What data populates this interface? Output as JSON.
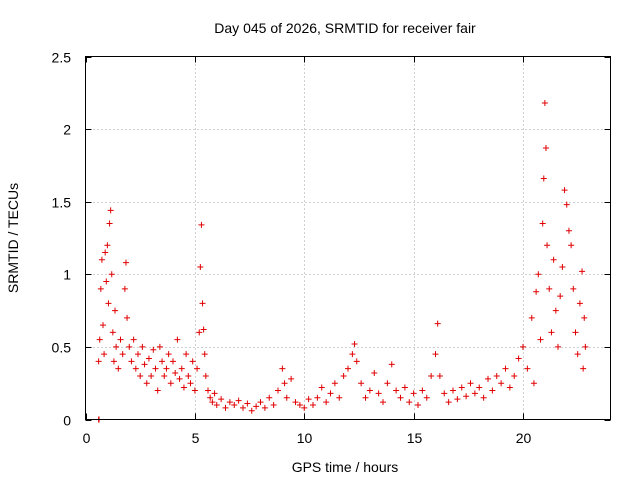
{
  "chart_data": {
    "type": "scatter",
    "title": "Day 045 of 2026, SRMTID for receiver fair",
    "xlabel": "GPS time / hours",
    "ylabel": "SRMTID / TECUs",
    "xlim": [
      0,
      24
    ],
    "ylim": [
      0,
      2.5
    ],
    "xticks": [
      0,
      5,
      10,
      15,
      20
    ],
    "xtick_labels": [
      "0",
      "5",
      "10",
      "15",
      "20"
    ],
    "yticks": [
      0,
      0.5,
      1,
      1.5,
      2,
      2.5
    ],
    "ytick_labels": [
      "0",
      "0.5",
      "1",
      "1.5",
      "2",
      "2.5"
    ],
    "grid": true,
    "marker": "+",
    "color": "#e00000",
    "series": [
      {
        "name": "SRMTID",
        "points": [
          [
            0.6,
            0.0
          ],
          [
            0.62,
            0.0
          ],
          [
            0.6,
            0.4
          ],
          [
            0.65,
            0.55
          ],
          [
            0.7,
            0.9
          ],
          [
            0.75,
            1.1
          ],
          [
            0.8,
            0.65
          ],
          [
            0.85,
            0.45
          ],
          [
            0.9,
            1.15
          ],
          [
            0.95,
            0.95
          ],
          [
            1.0,
            1.2
          ],
          [
            1.05,
            0.8
          ],
          [
            1.1,
            1.35
          ],
          [
            1.15,
            1.44
          ],
          [
            1.2,
            1.0
          ],
          [
            1.25,
            0.6
          ],
          [
            1.3,
            0.4
          ],
          [
            1.35,
            0.75
          ],
          [
            1.4,
            0.5
          ],
          [
            1.5,
            0.35
          ],
          [
            1.6,
            0.55
          ],
          [
            1.7,
            0.45
          ],
          [
            1.8,
            0.9
          ],
          [
            1.85,
            1.08
          ],
          [
            1.9,
            0.7
          ],
          [
            2.0,
            0.5
          ],
          [
            2.1,
            0.4
          ],
          [
            2.2,
            0.55
          ],
          [
            2.3,
            0.35
          ],
          [
            2.4,
            0.45
          ],
          [
            2.5,
            0.3
          ],
          [
            2.6,
            0.5
          ],
          [
            2.7,
            0.38
          ],
          [
            2.8,
            0.25
          ],
          [
            2.9,
            0.42
          ],
          [
            3.0,
            0.3
          ],
          [
            3.1,
            0.48
          ],
          [
            3.2,
            0.35
          ],
          [
            3.3,
            0.2
          ],
          [
            3.4,
            0.5
          ],
          [
            3.5,
            0.4
          ],
          [
            3.6,
            0.3
          ],
          [
            3.7,
            0.35
          ],
          [
            3.8,
            0.45
          ],
          [
            3.9,
            0.25
          ],
          [
            4.0,
            0.4
          ],
          [
            4.1,
            0.32
          ],
          [
            4.2,
            0.55
          ],
          [
            4.3,
            0.28
          ],
          [
            4.4,
            0.35
          ],
          [
            4.5,
            0.22
          ],
          [
            4.6,
            0.45
          ],
          [
            4.7,
            0.3
          ],
          [
            4.8,
            0.25
          ],
          [
            4.9,
            0.4
          ],
          [
            5.0,
            0.2
          ],
          [
            5.1,
            0.35
          ],
          [
            5.2,
            0.6
          ],
          [
            5.25,
            1.05
          ],
          [
            5.3,
            1.34
          ],
          [
            5.35,
            0.8
          ],
          [
            5.4,
            0.62
          ],
          [
            5.45,
            0.45
          ],
          [
            5.5,
            0.3
          ],
          [
            5.6,
            0.2
          ],
          [
            5.7,
            0.15
          ],
          [
            5.8,
            0.12
          ],
          [
            5.9,
            0.18
          ],
          [
            6.0,
            0.1
          ],
          [
            6.2,
            0.14
          ],
          [
            6.4,
            0.08
          ],
          [
            6.6,
            0.12
          ],
          [
            6.8,
            0.1
          ],
          [
            7.0,
            0.13
          ],
          [
            7.2,
            0.08
          ],
          [
            7.4,
            0.11
          ],
          [
            7.6,
            0.06
          ],
          [
            7.8,
            0.09
          ],
          [
            8.0,
            0.12
          ],
          [
            8.2,
            0.08
          ],
          [
            8.4,
            0.15
          ],
          [
            8.6,
            0.1
          ],
          [
            8.8,
            0.2
          ],
          [
            9.0,
            0.35
          ],
          [
            9.1,
            0.25
          ],
          [
            9.2,
            0.15
          ],
          [
            9.4,
            0.28
          ],
          [
            9.6,
            0.12
          ],
          [
            9.8,
            0.1
          ],
          [
            10.0,
            0.08
          ],
          [
            10.2,
            0.14
          ],
          [
            10.4,
            0.1
          ],
          [
            10.6,
            0.15
          ],
          [
            10.8,
            0.22
          ],
          [
            11.0,
            0.12
          ],
          [
            11.2,
            0.18
          ],
          [
            11.4,
            0.25
          ],
          [
            11.6,
            0.15
          ],
          [
            11.8,
            0.3
          ],
          [
            12.0,
            0.35
          ],
          [
            12.2,
            0.45
          ],
          [
            12.3,
            0.52
          ],
          [
            12.4,
            0.4
          ],
          [
            12.6,
            0.25
          ],
          [
            12.8,
            0.15
          ],
          [
            13.0,
            0.2
          ],
          [
            13.2,
            0.32
          ],
          [
            13.4,
            0.18
          ],
          [
            13.6,
            0.12
          ],
          [
            13.8,
            0.25
          ],
          [
            14.0,
            0.38
          ],
          [
            14.2,
            0.2
          ],
          [
            14.4,
            0.15
          ],
          [
            14.6,
            0.22
          ],
          [
            14.8,
            0.12
          ],
          [
            15.0,
            0.18
          ],
          [
            15.2,
            0.1
          ],
          [
            15.4,
            0.2
          ],
          [
            15.6,
            0.15
          ],
          [
            15.8,
            0.3
          ],
          [
            16.0,
            0.45
          ],
          [
            16.1,
            0.66
          ],
          [
            16.2,
            0.3
          ],
          [
            16.4,
            0.18
          ],
          [
            16.6,
            0.12
          ],
          [
            16.8,
            0.2
          ],
          [
            17.0,
            0.14
          ],
          [
            17.2,
            0.22
          ],
          [
            17.4,
            0.16
          ],
          [
            17.6,
            0.25
          ],
          [
            17.8,
            0.18
          ],
          [
            18.0,
            0.22
          ],
          [
            18.2,
            0.15
          ],
          [
            18.4,
            0.28
          ],
          [
            18.6,
            0.2
          ],
          [
            18.8,
            0.3
          ],
          [
            19.0,
            0.25
          ],
          [
            19.2,
            0.35
          ],
          [
            19.4,
            0.22
          ],
          [
            19.6,
            0.3
          ],
          [
            19.8,
            0.42
          ],
          [
            20.0,
            0.5
          ],
          [
            20.2,
            0.35
          ],
          [
            20.4,
            0.7
          ],
          [
            20.5,
            0.25
          ],
          [
            20.6,
            0.88
          ],
          [
            20.7,
            1.0
          ],
          [
            20.8,
            0.55
          ],
          [
            20.9,
            1.35
          ],
          [
            20.95,
            1.66
          ],
          [
            21.0,
            2.18
          ],
          [
            21.05,
            1.87
          ],
          [
            21.1,
            1.2
          ],
          [
            21.2,
            0.9
          ],
          [
            21.3,
            0.6
          ],
          [
            21.4,
            1.1
          ],
          [
            21.5,
            0.75
          ],
          [
            21.6,
            0.5
          ],
          [
            21.7,
            0.85
          ],
          [
            21.8,
            1.05
          ],
          [
            21.9,
            1.58
          ],
          [
            22.0,
            1.48
          ],
          [
            22.1,
            1.3
          ],
          [
            22.2,
            1.2
          ],
          [
            22.3,
            0.9
          ],
          [
            22.4,
            0.6
          ],
          [
            22.5,
            0.45
          ],
          [
            22.6,
            0.8
          ],
          [
            22.7,
            1.02
          ],
          [
            22.75,
            0.35
          ],
          [
            22.8,
            0.7
          ],
          [
            22.85,
            0.5
          ]
        ]
      }
    ]
  }
}
